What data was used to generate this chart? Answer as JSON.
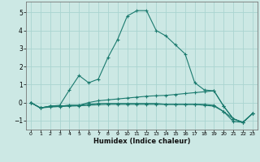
{
  "title": "",
  "xlabel": "Humidex (Indice chaleur)",
  "ylabel": "",
  "bg_color": "#cce8e4",
  "grid_color": "#aad4d0",
  "line_color": "#1a7a6e",
  "xlim": [
    -0.5,
    23.5
  ],
  "ylim": [
    -1.5,
    5.6
  ],
  "xticks": [
    0,
    1,
    2,
    3,
    4,
    5,
    6,
    7,
    8,
    9,
    10,
    11,
    12,
    13,
    14,
    15,
    16,
    17,
    18,
    19,
    20,
    21,
    22,
    23
  ],
  "yticks": [
    -1,
    0,
    1,
    2,
    3,
    4,
    5
  ],
  "lines": [
    {
      "x": [
        0,
        1,
        2,
        3,
        4,
        5,
        6,
        7,
        8,
        9,
        10,
        11,
        12,
        13,
        14,
        15,
        16,
        17,
        18,
        19,
        20,
        21,
        22,
        23
      ],
      "y": [
        0.0,
        -0.3,
        -0.2,
        -0.15,
        0.7,
        1.5,
        1.1,
        1.3,
        2.5,
        3.5,
        4.8,
        5.1,
        5.1,
        4.0,
        3.7,
        3.2,
        2.7,
        1.1,
        0.7,
        0.65,
        -0.2,
        -0.9,
        -1.1,
        -0.6
      ]
    },
    {
      "x": [
        0,
        1,
        2,
        3,
        4,
        5,
        6,
        7,
        8,
        9,
        10,
        11,
        12,
        13,
        14,
        15,
        16,
        17,
        18,
        19,
        20,
        21,
        22,
        23
      ],
      "y": [
        0.0,
        -0.3,
        -0.2,
        -0.2,
        -0.15,
        -0.15,
        0.0,
        0.1,
        0.15,
        0.2,
        0.25,
        0.3,
        0.35,
        0.38,
        0.4,
        0.45,
        0.5,
        0.55,
        0.6,
        0.65,
        -0.2,
        -0.9,
        -1.1,
        -0.6
      ]
    },
    {
      "x": [
        0,
        1,
        2,
        3,
        4,
        5,
        6,
        7,
        8,
        9,
        10,
        11,
        12,
        13,
        14,
        15,
        16,
        17,
        18,
        19,
        20,
        21,
        22,
        23
      ],
      "y": [
        0.0,
        -0.3,
        -0.2,
        -0.2,
        -0.15,
        -0.15,
        -0.1,
        -0.05,
        -0.05,
        -0.05,
        -0.05,
        -0.05,
        -0.05,
        -0.05,
        -0.1,
        -0.1,
        -0.1,
        -0.1,
        -0.1,
        -0.15,
        -0.5,
        -0.9,
        -1.1,
        -0.6
      ]
    },
    {
      "x": [
        0,
        1,
        2,
        3,
        4,
        5,
        6,
        7,
        8,
        9,
        10,
        11,
        12,
        13,
        14,
        15,
        16,
        17,
        18,
        19,
        20,
        21,
        22,
        23
      ],
      "y": [
        0.0,
        -0.3,
        -0.25,
        -0.22,
        -0.2,
        -0.18,
        -0.15,
        -0.12,
        -0.1,
        -0.1,
        -0.1,
        -0.1,
        -0.1,
        -0.1,
        -0.1,
        -0.1,
        -0.1,
        -0.1,
        -0.15,
        -0.2,
        -0.5,
        -1.05,
        -1.1,
        -0.6
      ]
    }
  ]
}
